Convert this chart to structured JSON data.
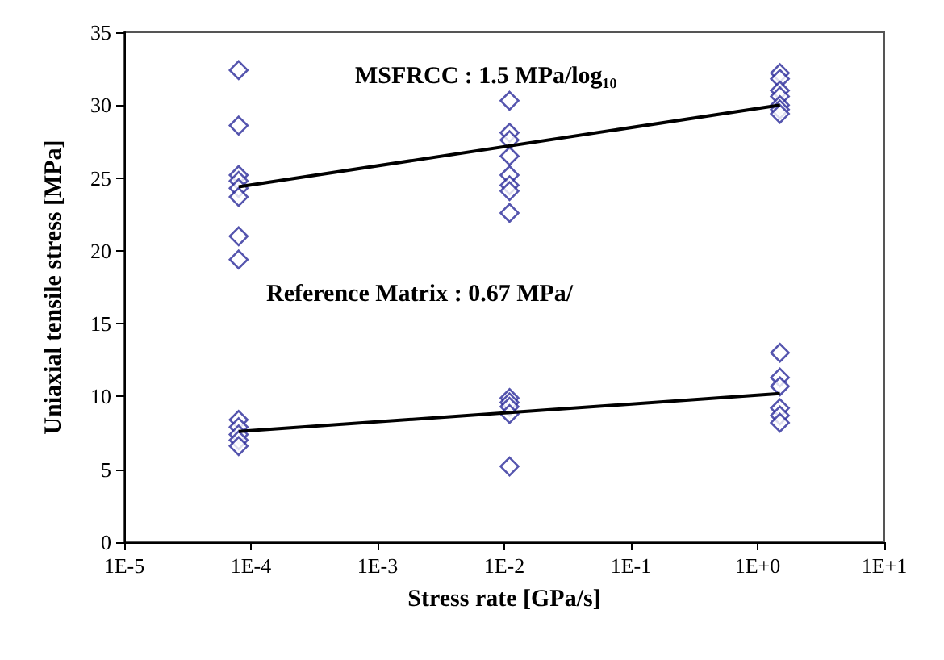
{
  "chart_data": {
    "type": "scatter",
    "xlabel": "Stress rate [GPa/s]",
    "ylabel": "Uniaxial tensile stress [MPa]",
    "log": "x",
    "marker": "diamond",
    "grid": false,
    "annotations": [
      "MSFRCC : 1.5 MPa/log₁₀",
      "Reference Matrix : 0.67 MPa/"
    ],
    "xlim": [
      1e-05,
      10
    ],
    "xticks": [
      {
        "value": 1e-05,
        "label": "1E-5"
      },
      {
        "value": 0.0001,
        "label": "1E-4"
      },
      {
        "value": 0.001,
        "label": "1E-3"
      },
      {
        "value": 0.01,
        "label": "1E-2"
      },
      {
        "value": 0.1,
        "label": "1E-1"
      },
      {
        "value": 1,
        "label": "1E+0"
      },
      {
        "value": 10,
        "label": "1E+1"
      }
    ],
    "ylim": [
      0,
      35
    ],
    "yticks": [
      0,
      5,
      10,
      15,
      20,
      25,
      30,
      35
    ],
    "series": [
      {
        "color": "#2b2b9a",
        "x": [
          8e-05,
          8e-05,
          8e-05,
          8e-05,
          8e-05,
          8e-05,
          8e-05,
          8e-05,
          0.011,
          0.011,
          0.011,
          0.011,
          0.011,
          0.011,
          0.011,
          0.011,
          1.5,
          1.5,
          1.5,
          1.5,
          1.5,
          1.5,
          1.5
        ],
        "values": [
          32.4,
          28.6,
          25.2,
          24.8,
          24.3,
          23.7,
          21.0,
          19.4,
          30.3,
          28.1,
          27.6,
          26.5,
          25.2,
          24.5,
          24.1,
          22.6,
          32.2,
          31.8,
          31.0,
          30.6,
          30.0,
          29.7,
          29.4
        ]
      },
      {
        "color": "#2b2b9a",
        "x": [
          8e-05,
          8e-05,
          8e-05,
          8e-05,
          8e-05,
          0.011,
          0.011,
          0.011,
          0.011,
          0.011,
          1.5,
          1.5,
          1.5,
          1.5,
          1.5,
          1.5
        ],
        "values": [
          8.4,
          7.9,
          7.4,
          7.0,
          6.6,
          9.9,
          9.6,
          9.3,
          8.8,
          5.2,
          13.0,
          11.3,
          10.7,
          9.2,
          8.7,
          8.2
        ]
      },
      {
        "type": "line",
        "color": "#000000",
        "marker": "none",
        "x": [
          8e-05,
          1.5
        ],
        "values": [
          24.4,
          30.0
        ]
      },
      {
        "type": "line",
        "color": "#000000",
        "marker": "none",
        "x": [
          8e-05,
          1.5
        ],
        "values": [
          7.6,
          10.2
        ]
      }
    ]
  }
}
